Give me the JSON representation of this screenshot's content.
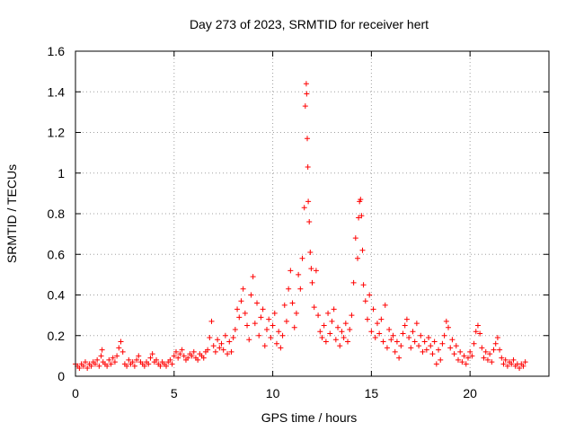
{
  "chart_data": {
    "type": "scatter",
    "title": "Day 273 of 2023, SRMTID for receiver hert",
    "xlabel": "GPS time / hours",
    "ylabel": "SRMTID / TECUs",
    "xlim": [
      0,
      24
    ],
    "ylim": [
      0,
      1.6
    ],
    "xticks": [
      0,
      5,
      10,
      15,
      20
    ],
    "xtick_labels": [
      "0",
      "5",
      "10",
      "15",
      "20"
    ],
    "yticks": [
      0,
      0.2,
      0.4,
      0.6,
      0.8,
      1.0,
      1.2,
      1.4,
      1.6
    ],
    "ytick_labels": [
      "0",
      "0.2",
      "0.4",
      "0.6",
      "0.8",
      "1",
      "1.2",
      "1.4",
      "1.6"
    ],
    "grid": true,
    "marker": "plus",
    "color": "#ff0000",
    "series": [
      {
        "name": "SRMTID",
        "points": [
          [
            0.0,
            0.06
          ],
          [
            0.1,
            0.05
          ],
          [
            0.2,
            0.04
          ],
          [
            0.3,
            0.06
          ],
          [
            0.4,
            0.05
          ],
          [
            0.5,
            0.07
          ],
          [
            0.6,
            0.04
          ],
          [
            0.7,
            0.06
          ],
          [
            0.8,
            0.05
          ],
          [
            0.9,
            0.07
          ],
          [
            1.0,
            0.06
          ],
          [
            1.1,
            0.08
          ],
          [
            1.2,
            0.05
          ],
          [
            1.3,
            0.1
          ],
          [
            1.35,
            0.13
          ],
          [
            1.4,
            0.07
          ],
          [
            1.5,
            0.06
          ],
          [
            1.6,
            0.05
          ],
          [
            1.7,
            0.08
          ],
          [
            1.8,
            0.06
          ],
          [
            1.9,
            0.09
          ],
          [
            2.0,
            0.07
          ],
          [
            2.1,
            0.1
          ],
          [
            2.2,
            0.14
          ],
          [
            2.3,
            0.17
          ],
          [
            2.4,
            0.12
          ],
          [
            2.5,
            0.06
          ],
          [
            2.6,
            0.05
          ],
          [
            2.7,
            0.08
          ],
          [
            2.8,
            0.06
          ],
          [
            2.9,
            0.07
          ],
          [
            3.0,
            0.05
          ],
          [
            3.1,
            0.08
          ],
          [
            3.2,
            0.1
          ],
          [
            3.3,
            0.07
          ],
          [
            3.4,
            0.06
          ],
          [
            3.5,
            0.05
          ],
          [
            3.6,
            0.07
          ],
          [
            3.7,
            0.06
          ],
          [
            3.8,
            0.09
          ],
          [
            3.9,
            0.11
          ],
          [
            4.0,
            0.07
          ],
          [
            4.1,
            0.08
          ],
          [
            4.2,
            0.06
          ],
          [
            4.3,
            0.05
          ],
          [
            4.4,
            0.07
          ],
          [
            4.5,
            0.06
          ],
          [
            4.6,
            0.05
          ],
          [
            4.7,
            0.07
          ],
          [
            4.8,
            0.08
          ],
          [
            4.9,
            0.06
          ],
          [
            5.0,
            0.1
          ],
          [
            5.1,
            0.12
          ],
          [
            5.2,
            0.09
          ],
          [
            5.3,
            0.11
          ],
          [
            5.4,
            0.13
          ],
          [
            5.5,
            0.1
          ],
          [
            5.6,
            0.08
          ],
          [
            5.7,
            0.09
          ],
          [
            5.8,
            0.11
          ],
          [
            5.9,
            0.1
          ],
          [
            6.0,
            0.12
          ],
          [
            6.1,
            0.09
          ],
          [
            6.2,
            0.08
          ],
          [
            6.3,
            0.11
          ],
          [
            6.4,
            0.1
          ],
          [
            6.5,
            0.09
          ],
          [
            6.6,
            0.12
          ],
          [
            6.7,
            0.13
          ],
          [
            6.8,
            0.19
          ],
          [
            6.9,
            0.27
          ],
          [
            7.0,
            0.15
          ],
          [
            7.1,
            0.12
          ],
          [
            7.2,
            0.18
          ],
          [
            7.3,
            0.14
          ],
          [
            7.4,
            0.16
          ],
          [
            7.5,
            0.13
          ],
          [
            7.6,
            0.2
          ],
          [
            7.7,
            0.11
          ],
          [
            7.8,
            0.17
          ],
          [
            7.9,
            0.12
          ],
          [
            8.0,
            0.19
          ],
          [
            8.1,
            0.23
          ],
          [
            8.2,
            0.33
          ],
          [
            8.3,
            0.29
          ],
          [
            8.4,
            0.37
          ],
          [
            8.5,
            0.43
          ],
          [
            8.6,
            0.31
          ],
          [
            8.7,
            0.25
          ],
          [
            8.8,
            0.18
          ],
          [
            8.9,
            0.4
          ],
          [
            9.0,
            0.49
          ],
          [
            9.1,
            0.26
          ],
          [
            9.2,
            0.36
          ],
          [
            9.3,
            0.2
          ],
          [
            9.4,
            0.29
          ],
          [
            9.5,
            0.33
          ],
          [
            9.6,
            0.15
          ],
          [
            9.7,
            0.23
          ],
          [
            9.8,
            0.28
          ],
          [
            9.9,
            0.19
          ],
          [
            10.0,
            0.25
          ],
          [
            10.1,
            0.31
          ],
          [
            10.2,
            0.16
          ],
          [
            10.3,
            0.22
          ],
          [
            10.4,
            0.14
          ],
          [
            10.5,
            0.2
          ],
          [
            10.6,
            0.35
          ],
          [
            10.7,
            0.27
          ],
          [
            10.8,
            0.43
          ],
          [
            10.9,
            0.52
          ],
          [
            11.0,
            0.36
          ],
          [
            11.1,
            0.24
          ],
          [
            11.2,
            0.31
          ],
          [
            11.3,
            0.5
          ],
          [
            11.4,
            0.43
          ],
          [
            11.5,
            0.58
          ],
          [
            11.6,
            0.83
          ],
          [
            11.65,
            1.33
          ],
          [
            11.7,
            1.44
          ],
          [
            11.72,
            1.39
          ],
          [
            11.75,
            1.17
          ],
          [
            11.78,
            1.03
          ],
          [
            11.8,
            0.86
          ],
          [
            11.85,
            0.76
          ],
          [
            11.9,
            0.61
          ],
          [
            11.95,
            0.53
          ],
          [
            12.0,
            0.46
          ],
          [
            12.1,
            0.34
          ],
          [
            12.2,
            0.52
          ],
          [
            12.3,
            0.3
          ],
          [
            12.4,
            0.22
          ],
          [
            12.5,
            0.19
          ],
          [
            12.6,
            0.25
          ],
          [
            12.7,
            0.17
          ],
          [
            12.8,
            0.31
          ],
          [
            12.9,
            0.21
          ],
          [
            13.0,
            0.27
          ],
          [
            13.1,
            0.33
          ],
          [
            13.2,
            0.18
          ],
          [
            13.3,
            0.24
          ],
          [
            13.4,
            0.15
          ],
          [
            13.5,
            0.22
          ],
          [
            13.6,
            0.19
          ],
          [
            13.7,
            0.26
          ],
          [
            13.8,
            0.17
          ],
          [
            13.9,
            0.23
          ],
          [
            14.0,
            0.3
          ],
          [
            14.1,
            0.46
          ],
          [
            14.2,
            0.68
          ],
          [
            14.3,
            0.58
          ],
          [
            14.35,
            0.78
          ],
          [
            14.4,
            0.86
          ],
          [
            14.45,
            0.87
          ],
          [
            14.5,
            0.79
          ],
          [
            14.55,
            0.62
          ],
          [
            14.6,
            0.45
          ],
          [
            14.7,
            0.37
          ],
          [
            14.8,
            0.28
          ],
          [
            14.9,
            0.4
          ],
          [
            15.0,
            0.22
          ],
          [
            15.1,
            0.33
          ],
          [
            15.2,
            0.19
          ],
          [
            15.3,
            0.26
          ],
          [
            15.4,
            0.21
          ],
          [
            15.5,
            0.28
          ],
          [
            15.6,
            0.17
          ],
          [
            15.7,
            0.35
          ],
          [
            15.8,
            0.14
          ],
          [
            15.9,
            0.23
          ],
          [
            16.0,
            0.18
          ],
          [
            16.1,
            0.2
          ],
          [
            16.2,
            0.12
          ],
          [
            16.3,
            0.17
          ],
          [
            16.4,
            0.09
          ],
          [
            16.5,
            0.15
          ],
          [
            16.6,
            0.21
          ],
          [
            16.7,
            0.25
          ],
          [
            16.8,
            0.28
          ],
          [
            16.9,
            0.19
          ],
          [
            17.0,
            0.14
          ],
          [
            17.1,
            0.22
          ],
          [
            17.2,
            0.17
          ],
          [
            17.3,
            0.26
          ],
          [
            17.4,
            0.15
          ],
          [
            17.5,
            0.2
          ],
          [
            17.6,
            0.12
          ],
          [
            17.7,
            0.17
          ],
          [
            17.8,
            0.13
          ],
          [
            17.9,
            0.19
          ],
          [
            18.0,
            0.15
          ],
          [
            18.1,
            0.11
          ],
          [
            18.2,
            0.17
          ],
          [
            18.3,
            0.06
          ],
          [
            18.4,
            0.13
          ],
          [
            18.5,
            0.08
          ],
          [
            18.6,
            0.16
          ],
          [
            18.7,
            0.2
          ],
          [
            18.8,
            0.27
          ],
          [
            18.9,
            0.24
          ],
          [
            19.0,
            0.14
          ],
          [
            19.1,
            0.18
          ],
          [
            19.2,
            0.11
          ],
          [
            19.3,
            0.15
          ],
          [
            19.4,
            0.08
          ],
          [
            19.5,
            0.12
          ],
          [
            19.6,
            0.07
          ],
          [
            19.7,
            0.1
          ],
          [
            19.8,
            0.06
          ],
          [
            19.9,
            0.09
          ],
          [
            20.0,
            0.12
          ],
          [
            20.1,
            0.1
          ],
          [
            20.2,
            0.16
          ],
          [
            20.3,
            0.22
          ],
          [
            20.4,
            0.25
          ],
          [
            20.5,
            0.21
          ],
          [
            20.6,
            0.14
          ],
          [
            20.7,
            0.09
          ],
          [
            20.8,
            0.12
          ],
          [
            20.9,
            0.08
          ],
          [
            21.0,
            0.11
          ],
          [
            21.1,
            0.07
          ],
          [
            21.2,
            0.13
          ],
          [
            21.3,
            0.16
          ],
          [
            21.4,
            0.19
          ],
          [
            21.5,
            0.13
          ],
          [
            21.6,
            0.09
          ],
          [
            21.7,
            0.06
          ],
          [
            21.8,
            0.08
          ],
          [
            21.9,
            0.05
          ],
          [
            22.0,
            0.07
          ],
          [
            22.1,
            0.06
          ],
          [
            22.2,
            0.08
          ],
          [
            22.3,
            0.05
          ],
          [
            22.4,
            0.06
          ],
          [
            22.5,
            0.04
          ],
          [
            22.6,
            0.06
          ],
          [
            22.7,
            0.05
          ],
          [
            22.8,
            0.07
          ]
        ]
      }
    ]
  }
}
